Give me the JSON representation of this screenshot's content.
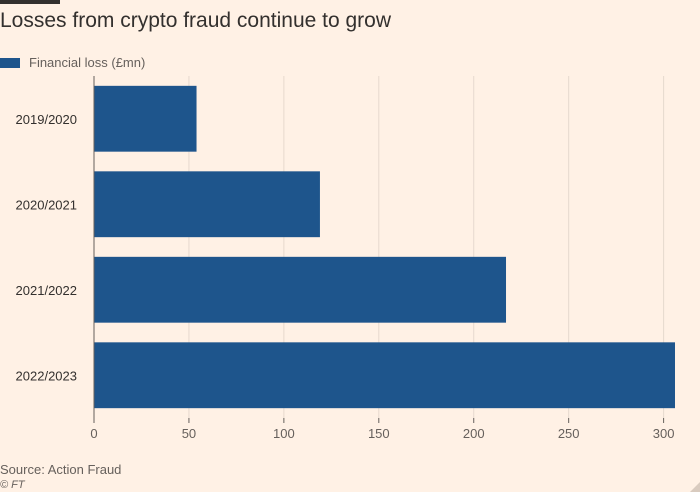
{
  "header": {
    "title": "Losses from crypto fraud continue to grow"
  },
  "legend": {
    "label": "Financial loss (£mn)",
    "color": "#1e558c"
  },
  "footer": {
    "source": "Source: Action Fraud",
    "credit": "© FT"
  },
  "colors": {
    "background": "#fff1e5",
    "bar": "#1e558c",
    "gridline": "#e6d9ce",
    "axis": "#66605c"
  },
  "chart_data": {
    "type": "bar",
    "orientation": "horizontal",
    "title": "Losses from crypto fraud continue to grow",
    "categories": [
      "2019/2020",
      "2020/2021",
      "2021/2022",
      "2022/2023"
    ],
    "series": [
      {
        "name": "Financial loss (£mn)",
        "values": [
          54,
          119,
          217,
          306
        ]
      }
    ],
    "xlim": [
      0,
      306
    ],
    "xticks": [
      0,
      50,
      100,
      150,
      200,
      250,
      300
    ],
    "grid": true,
    "legend_position": "top-left"
  }
}
